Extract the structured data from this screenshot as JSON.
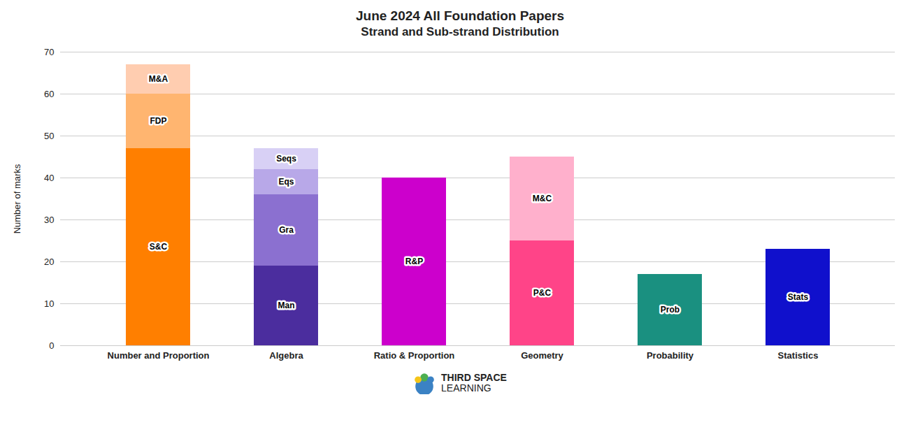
{
  "chart_data": {
    "type": "bar",
    "stacked": true,
    "title": "June 2024 All Foundation Papers",
    "subtitle": "Strand and Sub-strand Distribution",
    "ylabel": "Number of marks",
    "ylim": [
      0,
      70
    ],
    "yticks": [
      0,
      10,
      20,
      30,
      40,
      50,
      60,
      70
    ],
    "grid": true,
    "categories": [
      "Number and Proportion",
      "Algebra",
      "Ratio & Proportion",
      "Geometry",
      "Probability",
      "Statistics"
    ],
    "segments": [
      [
        {
          "label": "S&C",
          "value": 47,
          "color": "#FF7F00"
        },
        {
          "label": "FDP",
          "value": 13,
          "color": "#FFB570"
        },
        {
          "label": "M&A",
          "value": 7,
          "color": "#FFCDB0"
        }
      ],
      [
        {
          "label": "Man",
          "value": 19,
          "color": "#4B2D9E"
        },
        {
          "label": "Gra",
          "value": 17,
          "color": "#8B70D0"
        },
        {
          "label": "Eqs",
          "value": 6,
          "color": "#B8A8E8"
        },
        {
          "label": "Seqs",
          "value": 5,
          "color": "#D8D0F5"
        }
      ],
      [
        {
          "label": "R&P",
          "value": 40,
          "color": "#CC00CC"
        }
      ],
      [
        {
          "label": "P&C",
          "value": 25,
          "color": "#FF4488"
        },
        {
          "label": "M&C",
          "value": 20,
          "color": "#FFB0CC"
        }
      ],
      [
        {
          "label": "Prob",
          "value": 17,
          "color": "#1A9080"
        }
      ],
      [
        {
          "label": "Stats",
          "value": 23,
          "color": "#1010CC"
        }
      ]
    ],
    "annotations": [
      "THIRD SPACE",
      "LEARNING"
    ]
  }
}
